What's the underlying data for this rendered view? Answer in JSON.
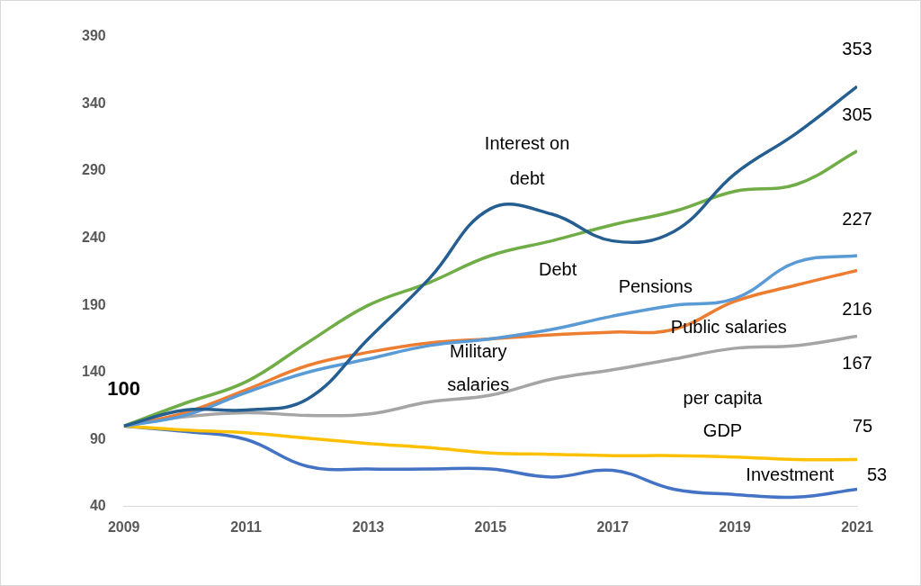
{
  "chart_data": {
    "type": "line",
    "x": [
      2009,
      2010,
      2011,
      2012,
      2013,
      2014,
      2015,
      2016,
      2017,
      2018,
      2019,
      2020,
      2021
    ],
    "xlim": [
      2009,
      2021
    ],
    "xticks": [
      2009,
      2011,
      2013,
      2015,
      2017,
      2019,
      2021
    ],
    "ylim": [
      40,
      390
    ],
    "yticks": [
      40,
      90,
      140,
      190,
      240,
      290,
      340,
      390
    ],
    "grid": false,
    "annotations": [
      {
        "text": "100",
        "x": 2009,
        "y": 100
      }
    ],
    "series": [
      {
        "name": "Interest on debt",
        "color": "#255e91",
        "values": [
          100,
          112,
          112,
          120,
          165,
          210,
          262,
          258,
          238,
          245,
          288,
          318,
          353
        ],
        "value_labels": [
          null,
          null,
          null,
          null,
          null,
          null,
          null,
          null,
          null,
          null,
          null,
          null,
          "353"
        ]
      },
      {
        "name": "Debt",
        "color": "#70ad47",
        "values": [
          100,
          117,
          133,
          162,
          190,
          207,
          227,
          238,
          250,
          260,
          275,
          280,
          305
        ],
        "value_labels": [
          null,
          null,
          null,
          null,
          null,
          null,
          null,
          null,
          null,
          null,
          null,
          null,
          "305"
        ]
      },
      {
        "name": "Pensions",
        "color": "#5b9bd5",
        "values": [
          100,
          108,
          125,
          140,
          150,
          160,
          165,
          172,
          182,
          190,
          195,
          222,
          227
        ],
        "value_labels": [
          null,
          null,
          null,
          null,
          null,
          null,
          null,
          null,
          null,
          null,
          null,
          null,
          "227"
        ]
      },
      {
        "name": "Public salaries",
        "color": "#ed7d31",
        "values": [
          100,
          110,
          127,
          145,
          155,
          162,
          165,
          168,
          170,
          172,
          193,
          205,
          216
        ],
        "value_labels": [
          null,
          null,
          null,
          null,
          null,
          null,
          null,
          null,
          null,
          null,
          null,
          null,
          "216"
        ]
      },
      {
        "name": "Military salaries",
        "color": "#a5a5a5",
        "values": [
          100,
          107,
          110,
          108,
          109,
          118,
          123,
          135,
          142,
          150,
          158,
          160,
          167
        ],
        "value_labels": [
          null,
          null,
          null,
          null,
          null,
          null,
          null,
          null,
          null,
          null,
          null,
          null,
          "167"
        ]
      },
      {
        "name": "per capita GDP",
        "color": "#ffc000",
        "values": [
          100,
          97,
          95,
          91,
          87,
          84,
          80,
          79,
          78,
          78,
          77,
          75,
          75
        ],
        "value_labels": [
          null,
          null,
          null,
          null,
          null,
          null,
          null,
          null,
          null,
          null,
          null,
          null,
          "75"
        ]
      },
      {
        "name": "Investment",
        "color": "#4472c4",
        "values": [
          100,
          96,
          90,
          70,
          68,
          68,
          68,
          62,
          67,
          53,
          49,
          47,
          53
        ],
        "value_labels": [
          null,
          null,
          null,
          null,
          null,
          null,
          null,
          null,
          null,
          null,
          null,
          null,
          "53"
        ]
      }
    ]
  }
}
